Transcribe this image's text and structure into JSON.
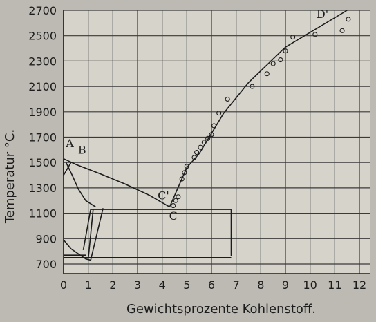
{
  "chart_data": {
    "type": "line",
    "title": "",
    "xlabel": "Gewichtsprozente Kohlenstoff.",
    "ylabel": "Temperatur °C.",
    "xlim": [
      0,
      12
    ],
    "ylim": [
      700,
      2700
    ],
    "x_ticks": [
      0,
      1,
      2,
      3,
      4,
      5,
      6,
      7,
      8,
      9,
      10,
      11,
      12
    ],
    "y_ticks": [
      700,
      900,
      1100,
      1300,
      1500,
      1700,
      1900,
      2100,
      2300,
      2500,
      2700
    ],
    "grid": true,
    "legend": "none",
    "series": [
      {
        "values": [
          [
            0,
            1530
          ],
          [
            0.5,
            1485
          ],
          [
            1.5,
            1410
          ],
          [
            2.5,
            1330
          ],
          [
            3.5,
            1240
          ],
          [
            4.3,
            1150
          ]
        ]
      },
      {
        "values": [
          [
            0.1,
            1500
          ],
          [
            0.35,
            1400
          ],
          [
            0.6,
            1290
          ],
          [
            0.9,
            1200
          ],
          [
            1.3,
            1150
          ]
        ]
      },
      {
        "values": [
          [
            4.3,
            1150
          ],
          [
            5.0,
            1460
          ],
          [
            5.5,
            1570
          ],
          [
            6.0,
            1730
          ],
          [
            6.5,
            1890
          ],
          [
            7.5,
            2130
          ],
          [
            9.0,
            2410
          ],
          [
            11.5,
            2700
          ]
        ]
      },
      {
        "values": [
          [
            0,
            1530
          ],
          [
            0,
            1400
          ],
          [
            0.3,
            1500
          ]
        ]
      },
      {
        "values": [
          [
            0,
            890
          ],
          [
            0.3,
            820
          ],
          [
            0.9,
            740
          ],
          [
            1.1,
            730
          ]
        ]
      },
      {
        "values": [
          [
            0.8,
            810
          ],
          [
            1.1,
            1130
          ]
        ]
      },
      {
        "values": [
          [
            1.0,
            740
          ],
          [
            1.2,
            1130
          ]
        ]
      },
      {
        "values": [
          [
            1.1,
            730
          ],
          [
            1.6,
            1140
          ]
        ]
      },
      {
        "values": [
          [
            0,
            750
          ],
          [
            6.8,
            750
          ]
        ]
      },
      {
        "values": [
          [
            0,
            770
          ],
          [
            0.9,
            770
          ]
        ]
      },
      {
        "values": [
          [
            1.1,
            1130
          ],
          [
            6.8,
            1130
          ]
        ]
      },
      {
        "values": [
          [
            6.8,
            760
          ],
          [
            6.8,
            1130
          ]
        ]
      }
    ],
    "points": [
      [
        4.45,
        1160
      ],
      [
        4.55,
        1200
      ],
      [
        4.65,
        1230
      ],
      [
        4.8,
        1370
      ],
      [
        4.9,
        1420
      ],
      [
        5.0,
        1470
      ],
      [
        5.3,
        1540
      ],
      [
        5.4,
        1580
      ],
      [
        5.55,
        1620
      ],
      [
        5.7,
        1660
      ],
      [
        5.85,
        1690
      ],
      [
        6.0,
        1720
      ],
      [
        6.1,
        1790
      ],
      [
        6.3,
        1890
      ],
      [
        6.65,
        2000
      ],
      [
        7.65,
        2100
      ],
      [
        8.25,
        2200
      ],
      [
        8.5,
        2280
      ],
      [
        8.8,
        2310
      ],
      [
        9.0,
        2380
      ],
      [
        9.3,
        2490
      ],
      [
        10.2,
        2510
      ],
      [
        11.3,
        2540
      ],
      [
        11.55,
        2630
      ]
    ],
    "annotations": [
      {
        "text": "A",
        "x": 0.25,
        "y": 1620
      },
      {
        "text": "B",
        "x": 0.75,
        "y": 1570
      },
      {
        "text": "C",
        "x": 4.45,
        "y": 1050
      },
      {
        "text": "C'",
        "x": 4.05,
        "y": 1210
      },
      {
        "text": "D'",
        "x": 10.5,
        "y": 2640
      }
    ]
  }
}
